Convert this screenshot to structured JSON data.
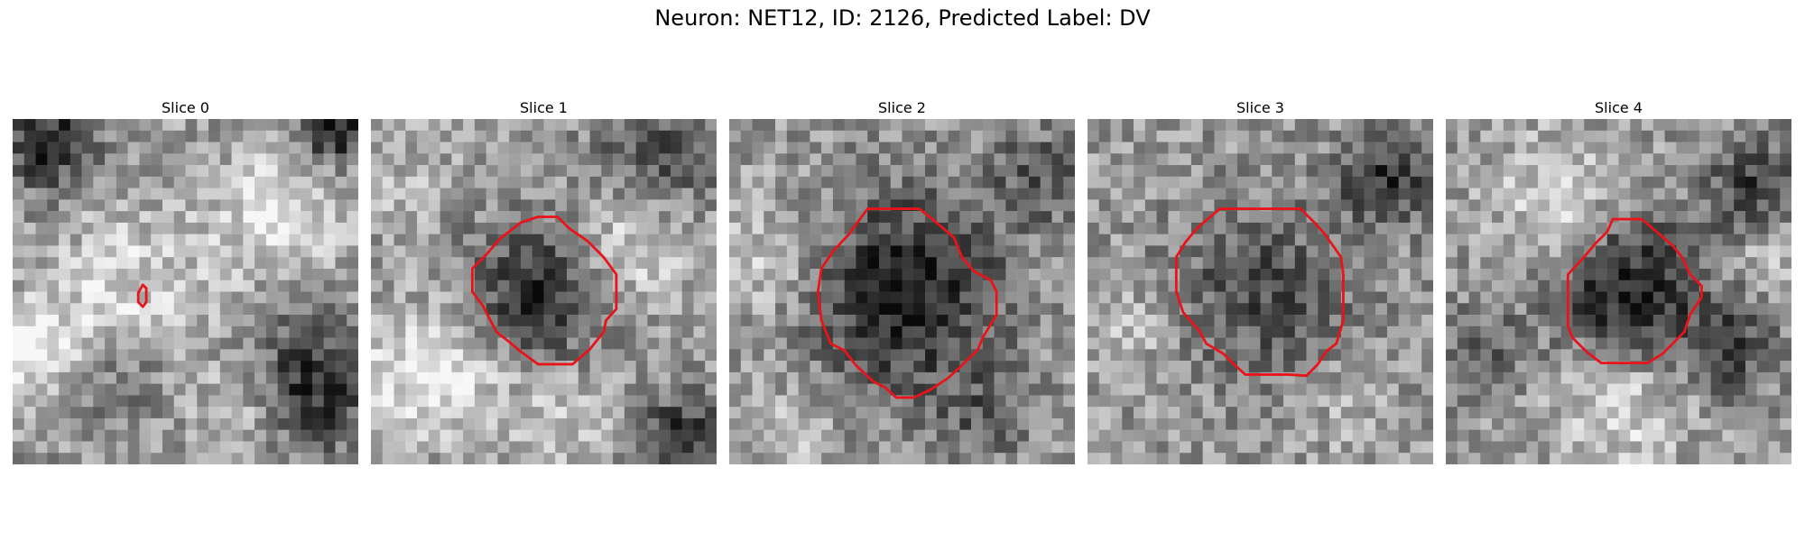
{
  "figure": {
    "title": "Neuron: NET12, ID: 2126, Predicted Label: DV"
  },
  "panels": [
    {
      "title": "Slice 0"
    },
    {
      "title": "Slice 1"
    },
    {
      "title": "Slice 2"
    },
    {
      "title": "Slice 3"
    },
    {
      "title": "Slice 4"
    }
  ],
  "colors": {
    "contour": "#e8141a",
    "background": "#ffffff"
  }
}
